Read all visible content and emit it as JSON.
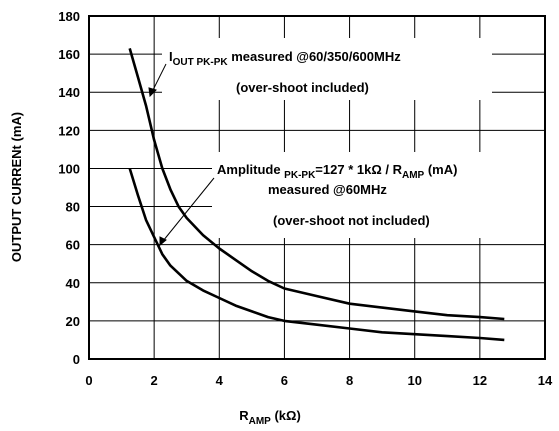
{
  "chart_data": {
    "type": "line",
    "xlabel": {
      "main": "R",
      "sub": "AMP",
      "rest": " (kΩ)"
    },
    "ylabel": "OUTPUT CURRENt (mA)",
    "xlim": [
      0,
      14
    ],
    "ylim": [
      0,
      180
    ],
    "xticks": [
      0,
      2,
      4,
      6,
      8,
      10,
      12,
      14
    ],
    "yticks": [
      0,
      20,
      40,
      60,
      80,
      100,
      120,
      140,
      160,
      180
    ],
    "grid": true,
    "series": [
      {
        "x": [
          1.25,
          1.5,
          1.75,
          2.0,
          2.25,
          2.5,
          2.75,
          3.0,
          3.5,
          4.0,
          4.5,
          5.0,
          5.5,
          6.0,
          7.0,
          8.0,
          9.0,
          10.0,
          11.0,
          12.0,
          12.75
        ],
        "values": [
          163,
          148,
          133,
          115,
          100,
          89,
          80,
          74,
          65,
          58,
          52,
          46,
          41,
          37,
          33,
          29,
          27,
          25,
          23,
          22,
          21
        ]
      },
      {
        "x": [
          1.25,
          1.5,
          1.75,
          2.0,
          2.25,
          2.5,
          3.0,
          3.5,
          4.0,
          4.5,
          5.0,
          5.5,
          6.0,
          7.0,
          8.0,
          9.0,
          10.0,
          11.0,
          12.0,
          12.75
        ],
        "values": [
          100,
          86,
          73,
          64,
          55,
          49,
          41,
          36,
          32,
          28,
          25,
          22,
          20,
          18,
          16,
          14,
          13,
          12,
          11,
          10
        ]
      }
    ],
    "annotations": {
      "upper": {
        "line1": {
          "a": "I",
          "b": "OUT PK-PK",
          "c": " measured @60/350/600MHz"
        },
        "line2": "(over-shoot included)"
      },
      "lower": {
        "line1": {
          "a": "Amplitude ",
          "b": "PK-PK",
          "c": "=127 * 1kΩ / R",
          "d": "AMP",
          "e": " (mA)"
        },
        "line2": "measured @60MHz",
        "line3": "(over-shoot not included)"
      }
    }
  }
}
